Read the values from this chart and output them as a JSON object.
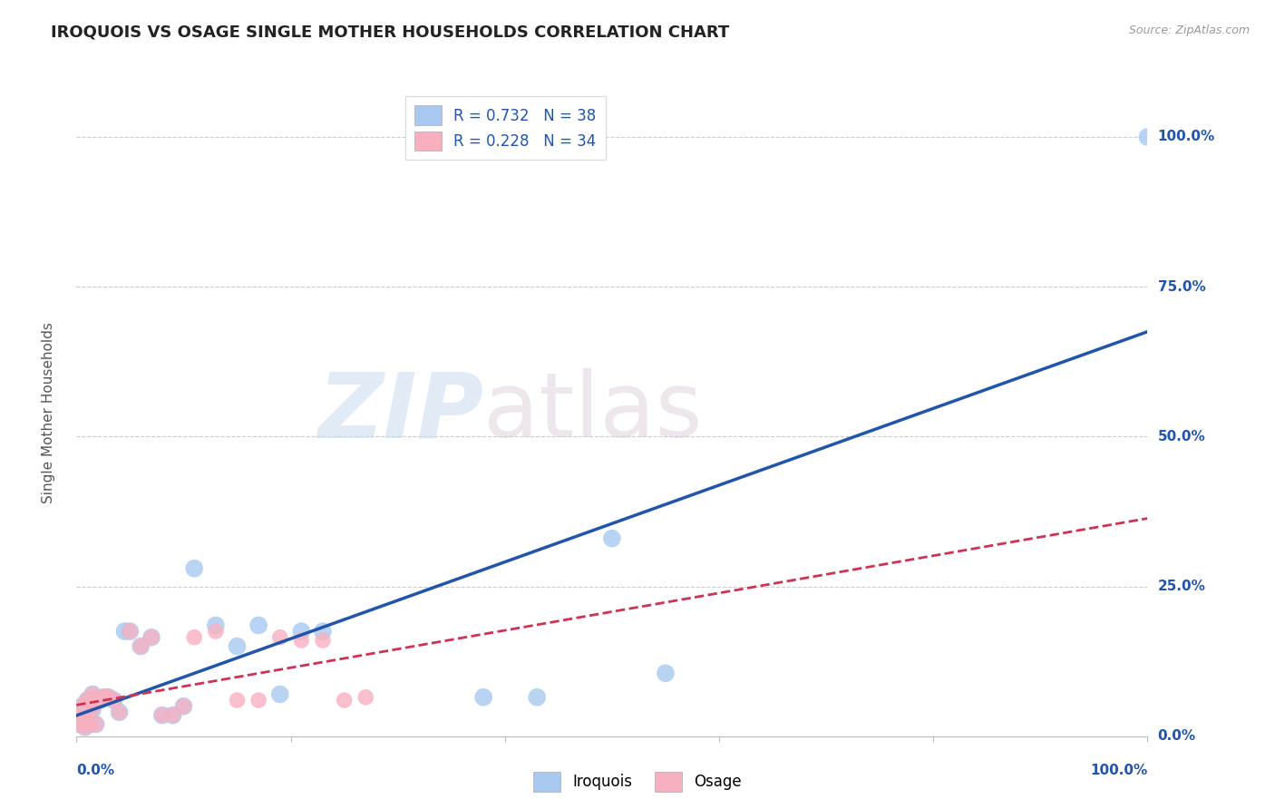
{
  "title": "IROQUOIS VS OSAGE SINGLE MOTHER HOUSEHOLDS CORRELATION CHART",
  "source": "Source: ZipAtlas.com",
  "ylabel": "Single Mother Households",
  "iroquois_R": 0.732,
  "iroquois_N": 38,
  "osage_R": 0.228,
  "osage_N": 34,
  "iroquois_color": "#A8C8F0",
  "iroquois_line_color": "#2255AA",
  "osage_color": "#F8B0C0",
  "osage_line_color": "#CC3355",
  "background_color": "#FFFFFF",
  "grid_color": "#CCCCCC",
  "ytick_vals": [
    0.0,
    0.25,
    0.5,
    0.75,
    1.0
  ],
  "iroquois_x": [
    0.003,
    0.005,
    0.005,
    0.007,
    0.008,
    0.01,
    0.01,
    0.012,
    0.013,
    0.015,
    0.015,
    0.018,
    0.02,
    0.022,
    0.025,
    0.028,
    0.03,
    0.035,
    0.04,
    0.045,
    0.05,
    0.06,
    0.07,
    0.08,
    0.09,
    0.1,
    0.11,
    0.13,
    0.15,
    0.17,
    0.19,
    0.21,
    0.23,
    0.38,
    0.43,
    0.5,
    0.55,
    1.0
  ],
  "iroquois_y": [
    0.02,
    0.03,
    0.05,
    0.025,
    0.015,
    0.03,
    0.06,
    0.02,
    0.06,
    0.045,
    0.07,
    0.02,
    0.06,
    0.06,
    0.065,
    0.065,
    0.065,
    0.06,
    0.04,
    0.175,
    0.175,
    0.15,
    0.165,
    0.035,
    0.035,
    0.05,
    0.28,
    0.185,
    0.15,
    0.185,
    0.07,
    0.175,
    0.175,
    0.065,
    0.065,
    0.33,
    0.105,
    1.0
  ],
  "osage_x": [
    0.003,
    0.005,
    0.005,
    0.007,
    0.008,
    0.01,
    0.01,
    0.012,
    0.013,
    0.015,
    0.015,
    0.018,
    0.02,
    0.022,
    0.025,
    0.028,
    0.03,
    0.035,
    0.04,
    0.05,
    0.06,
    0.07,
    0.08,
    0.09,
    0.1,
    0.11,
    0.13,
    0.15,
    0.17,
    0.19,
    0.21,
    0.23,
    0.25,
    0.27
  ],
  "osage_y": [
    0.02,
    0.03,
    0.05,
    0.025,
    0.015,
    0.03,
    0.06,
    0.02,
    0.06,
    0.045,
    0.07,
    0.02,
    0.06,
    0.06,
    0.065,
    0.065,
    0.065,
    0.06,
    0.04,
    0.175,
    0.15,
    0.165,
    0.035,
    0.035,
    0.05,
    0.165,
    0.175,
    0.06,
    0.06,
    0.165,
    0.16,
    0.16,
    0.06,
    0.065
  ]
}
